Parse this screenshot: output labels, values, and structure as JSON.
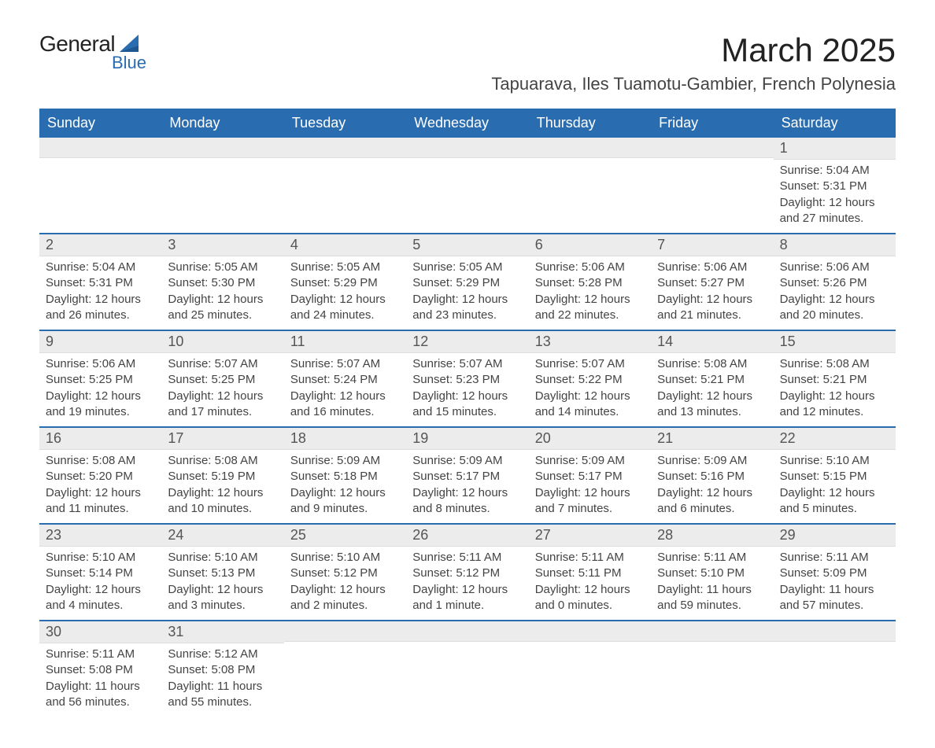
{
  "logo": {
    "text_main": "General",
    "text_sub": "Blue",
    "color_main": "#222222",
    "color_sub": "#2a6cb0",
    "sail_color": "#2a6cb0"
  },
  "header": {
    "month_title": "March 2025",
    "location": "Tapuarava, Iles Tuamotu-Gambier, French Polynesia"
  },
  "colors": {
    "header_bg": "#2a6cb0",
    "header_text": "#ffffff",
    "strip_bg": "#ececec",
    "row_border": "#2a6cb0",
    "body_text": "#444444"
  },
  "day_headers": [
    "Sunday",
    "Monday",
    "Tuesday",
    "Wednesday",
    "Thursday",
    "Friday",
    "Saturday"
  ],
  "weeks": [
    [
      {
        "day": "",
        "sunrise": "",
        "sunset": "",
        "daylight": ""
      },
      {
        "day": "",
        "sunrise": "",
        "sunset": "",
        "daylight": ""
      },
      {
        "day": "",
        "sunrise": "",
        "sunset": "",
        "daylight": ""
      },
      {
        "day": "",
        "sunrise": "",
        "sunset": "",
        "daylight": ""
      },
      {
        "day": "",
        "sunrise": "",
        "sunset": "",
        "daylight": ""
      },
      {
        "day": "",
        "sunrise": "",
        "sunset": "",
        "daylight": ""
      },
      {
        "day": "1",
        "sunrise": "Sunrise: 5:04 AM",
        "sunset": "Sunset: 5:31 PM",
        "daylight": "Daylight: 12 hours and 27 minutes."
      }
    ],
    [
      {
        "day": "2",
        "sunrise": "Sunrise: 5:04 AM",
        "sunset": "Sunset: 5:31 PM",
        "daylight": "Daylight: 12 hours and 26 minutes."
      },
      {
        "day": "3",
        "sunrise": "Sunrise: 5:05 AM",
        "sunset": "Sunset: 5:30 PM",
        "daylight": "Daylight: 12 hours and 25 minutes."
      },
      {
        "day": "4",
        "sunrise": "Sunrise: 5:05 AM",
        "sunset": "Sunset: 5:29 PM",
        "daylight": "Daylight: 12 hours and 24 minutes."
      },
      {
        "day": "5",
        "sunrise": "Sunrise: 5:05 AM",
        "sunset": "Sunset: 5:29 PM",
        "daylight": "Daylight: 12 hours and 23 minutes."
      },
      {
        "day": "6",
        "sunrise": "Sunrise: 5:06 AM",
        "sunset": "Sunset: 5:28 PM",
        "daylight": "Daylight: 12 hours and 22 minutes."
      },
      {
        "day": "7",
        "sunrise": "Sunrise: 5:06 AM",
        "sunset": "Sunset: 5:27 PM",
        "daylight": "Daylight: 12 hours and 21 minutes."
      },
      {
        "day": "8",
        "sunrise": "Sunrise: 5:06 AM",
        "sunset": "Sunset: 5:26 PM",
        "daylight": "Daylight: 12 hours and 20 minutes."
      }
    ],
    [
      {
        "day": "9",
        "sunrise": "Sunrise: 5:06 AM",
        "sunset": "Sunset: 5:25 PM",
        "daylight": "Daylight: 12 hours and 19 minutes."
      },
      {
        "day": "10",
        "sunrise": "Sunrise: 5:07 AM",
        "sunset": "Sunset: 5:25 PM",
        "daylight": "Daylight: 12 hours and 17 minutes."
      },
      {
        "day": "11",
        "sunrise": "Sunrise: 5:07 AM",
        "sunset": "Sunset: 5:24 PM",
        "daylight": "Daylight: 12 hours and 16 minutes."
      },
      {
        "day": "12",
        "sunrise": "Sunrise: 5:07 AM",
        "sunset": "Sunset: 5:23 PM",
        "daylight": "Daylight: 12 hours and 15 minutes."
      },
      {
        "day": "13",
        "sunrise": "Sunrise: 5:07 AM",
        "sunset": "Sunset: 5:22 PM",
        "daylight": "Daylight: 12 hours and 14 minutes."
      },
      {
        "day": "14",
        "sunrise": "Sunrise: 5:08 AM",
        "sunset": "Sunset: 5:21 PM",
        "daylight": "Daylight: 12 hours and 13 minutes."
      },
      {
        "day": "15",
        "sunrise": "Sunrise: 5:08 AM",
        "sunset": "Sunset: 5:21 PM",
        "daylight": "Daylight: 12 hours and 12 minutes."
      }
    ],
    [
      {
        "day": "16",
        "sunrise": "Sunrise: 5:08 AM",
        "sunset": "Sunset: 5:20 PM",
        "daylight": "Daylight: 12 hours and 11 minutes."
      },
      {
        "day": "17",
        "sunrise": "Sunrise: 5:08 AM",
        "sunset": "Sunset: 5:19 PM",
        "daylight": "Daylight: 12 hours and 10 minutes."
      },
      {
        "day": "18",
        "sunrise": "Sunrise: 5:09 AM",
        "sunset": "Sunset: 5:18 PM",
        "daylight": "Daylight: 12 hours and 9 minutes."
      },
      {
        "day": "19",
        "sunrise": "Sunrise: 5:09 AM",
        "sunset": "Sunset: 5:17 PM",
        "daylight": "Daylight: 12 hours and 8 minutes."
      },
      {
        "day": "20",
        "sunrise": "Sunrise: 5:09 AM",
        "sunset": "Sunset: 5:17 PM",
        "daylight": "Daylight: 12 hours and 7 minutes."
      },
      {
        "day": "21",
        "sunrise": "Sunrise: 5:09 AM",
        "sunset": "Sunset: 5:16 PM",
        "daylight": "Daylight: 12 hours and 6 minutes."
      },
      {
        "day": "22",
        "sunrise": "Sunrise: 5:10 AM",
        "sunset": "Sunset: 5:15 PM",
        "daylight": "Daylight: 12 hours and 5 minutes."
      }
    ],
    [
      {
        "day": "23",
        "sunrise": "Sunrise: 5:10 AM",
        "sunset": "Sunset: 5:14 PM",
        "daylight": "Daylight: 12 hours and 4 minutes."
      },
      {
        "day": "24",
        "sunrise": "Sunrise: 5:10 AM",
        "sunset": "Sunset: 5:13 PM",
        "daylight": "Daylight: 12 hours and 3 minutes."
      },
      {
        "day": "25",
        "sunrise": "Sunrise: 5:10 AM",
        "sunset": "Sunset: 5:12 PM",
        "daylight": "Daylight: 12 hours and 2 minutes."
      },
      {
        "day": "26",
        "sunrise": "Sunrise: 5:11 AM",
        "sunset": "Sunset: 5:12 PM",
        "daylight": "Daylight: 12 hours and 1 minute."
      },
      {
        "day": "27",
        "sunrise": "Sunrise: 5:11 AM",
        "sunset": "Sunset: 5:11 PM",
        "daylight": "Daylight: 12 hours and 0 minutes."
      },
      {
        "day": "28",
        "sunrise": "Sunrise: 5:11 AM",
        "sunset": "Sunset: 5:10 PM",
        "daylight": "Daylight: 11 hours and 59 minutes."
      },
      {
        "day": "29",
        "sunrise": "Sunrise: 5:11 AM",
        "sunset": "Sunset: 5:09 PM",
        "daylight": "Daylight: 11 hours and 57 minutes."
      }
    ],
    [
      {
        "day": "30",
        "sunrise": "Sunrise: 5:11 AM",
        "sunset": "Sunset: 5:08 PM",
        "daylight": "Daylight: 11 hours and 56 minutes."
      },
      {
        "day": "31",
        "sunrise": "Sunrise: 5:12 AM",
        "sunset": "Sunset: 5:08 PM",
        "daylight": "Daylight: 11 hours and 55 minutes."
      },
      {
        "day": "",
        "sunrise": "",
        "sunset": "",
        "daylight": ""
      },
      {
        "day": "",
        "sunrise": "",
        "sunset": "",
        "daylight": ""
      },
      {
        "day": "",
        "sunrise": "",
        "sunset": "",
        "daylight": ""
      },
      {
        "day": "",
        "sunrise": "",
        "sunset": "",
        "daylight": ""
      },
      {
        "day": "",
        "sunrise": "",
        "sunset": "",
        "daylight": ""
      }
    ]
  ]
}
